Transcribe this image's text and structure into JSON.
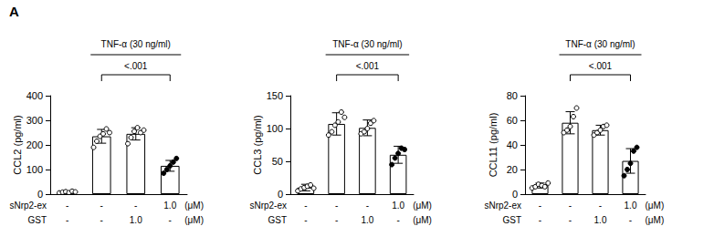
{
  "panel_label": "A",
  "chart_data": [
    {
      "type": "bar",
      "ylabel": "CCL2 (pg/ml)",
      "categories": [
        null,
        null,
        null,
        null
      ],
      "values": [
        8,
        235,
        245,
        115
      ],
      "errors": [
        3,
        28,
        25,
        22
      ],
      "points": [
        {
          "values": [
            5,
            8,
            10,
            6,
            12,
            9
          ],
          "marker": "open"
        },
        {
          "values": [
            190,
            215,
            235,
            245,
            265,
            250
          ],
          "marker": "open"
        },
        {
          "values": [
            205,
            230,
            255,
            270,
            250,
            260
          ],
          "marker": "open"
        },
        {
          "values": [
            85,
            100,
            115,
            130,
            145
          ],
          "marker": "filled"
        }
      ],
      "color": "#ffffff",
      "ylim": [
        0,
        400
      ],
      "yticks": [
        0,
        100,
        200,
        300,
        400
      ],
      "grid": false,
      "annotation": {
        "text": "TNF-α (30 ng/ml)",
        "from": 1,
        "to": 3
      },
      "significance": {
        "label": "<.001",
        "from": 1,
        "to": 3
      },
      "treatment_rows": [
        {
          "label": "sNrp2-ex",
          "values": [
            "-",
            "-",
            "-",
            "1.0"
          ],
          "unit": "(μM)"
        },
        {
          "label": "GST",
          "values": [
            "-",
            "-",
            "1.0",
            "-"
          ],
          "unit": "(μM)"
        }
      ]
    },
    {
      "type": "bar",
      "ylabel": "CCL3 (pg/ml)",
      "categories": [
        null,
        null,
        null,
        null
      ],
      "values": [
        10,
        107,
        101,
        60
      ],
      "errors": [
        5,
        17,
        12,
        13
      ],
      "points": [
        {
          "values": [
            5,
            8,
            10,
            12,
            14,
            9
          ],
          "marker": "open"
        },
        {
          "values": [
            90,
            95,
            105,
            110,
            125,
            117
          ],
          "marker": "open"
        },
        {
          "values": [
            92,
            95,
            100,
            108,
            112
          ],
          "marker": "open"
        },
        {
          "values": [
            45,
            55,
            62,
            70,
            68
          ],
          "marker": "filled"
        }
      ],
      "color": "#ffffff",
      "ylim": [
        0,
        150
      ],
      "yticks": [
        0,
        50,
        100,
        150
      ],
      "grid": false,
      "annotation": {
        "text": "TNF-α (30 ng/ml)",
        "from": 1,
        "to": 3
      },
      "significance": {
        "label": "<.001",
        "from": 1,
        "to": 3
      },
      "treatment_rows": [
        {
          "label": "sNrp2-ex",
          "values": [
            "-",
            "-",
            "-",
            "1.0"
          ],
          "unit": "(μM)"
        },
        {
          "label": "GST",
          "values": [
            "-",
            "-",
            "1.0",
            "-"
          ],
          "unit": "(μM)"
        }
      ]
    },
    {
      "type": "bar",
      "ylabel": "CCL11 (pg/ml)",
      "categories": [
        null,
        null,
        null,
        null
      ],
      "values": [
        7,
        58,
        52,
        27
      ],
      "errors": [
        2,
        9,
        4,
        10
      ],
      "points": [
        {
          "values": [
            5,
            6,
            8,
            7,
            6,
            9
          ],
          "marker": "open"
        },
        {
          "values": [
            50,
            52,
            55,
            63,
            70
          ],
          "marker": "open"
        },
        {
          "values": [
            48,
            50,
            52,
            55,
            56
          ],
          "marker": "open"
        },
        {
          "values": [
            15,
            20,
            25,
            35,
            38
          ],
          "marker": "filled"
        }
      ],
      "color": "#ffffff",
      "ylim": [
        0,
        80
      ],
      "yticks": [
        0,
        20,
        40,
        60,
        80
      ],
      "grid": false,
      "annotation": {
        "text": "TNF-α (30 ng/ml)",
        "from": 1,
        "to": 3
      },
      "significance": {
        "label": "<.001",
        "from": 1,
        "to": 3
      },
      "treatment_rows": [
        {
          "label": "sNrp2-ex",
          "values": [
            "-",
            "-",
            "-",
            "1.0"
          ],
          "unit": "(μM)"
        },
        {
          "label": "GST",
          "values": [
            "-",
            "-",
            "1.0",
            "-"
          ],
          "unit": "(μM)"
        }
      ]
    }
  ]
}
